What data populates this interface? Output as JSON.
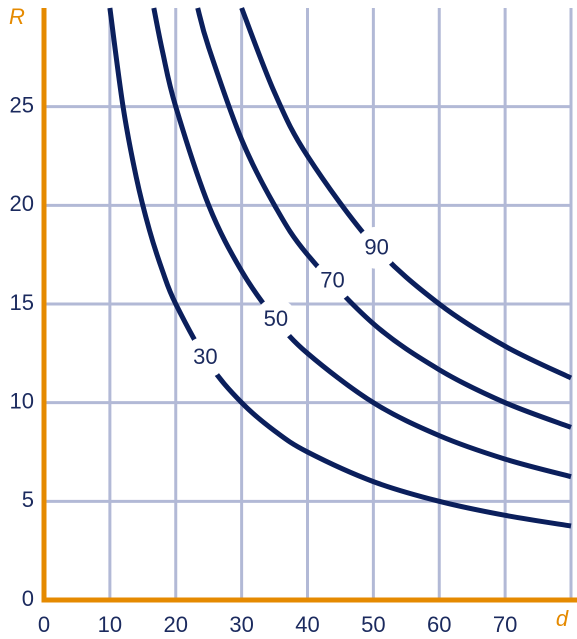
{
  "chart_data": {
    "type": "line",
    "x_label": "d",
    "y_label": "R",
    "xlim": [
      0,
      80
    ],
    "ylim": [
      0,
      30
    ],
    "xticks": [
      0,
      10,
      20,
      30,
      40,
      50,
      60,
      70
    ],
    "yticks": [
      0,
      5,
      10,
      15,
      20,
      25
    ],
    "grid": true,
    "grid_color": "#b2b9d6",
    "axis_color": "#e58a00",
    "tick_color": "#1b2a5e",
    "series": [
      {
        "name": "30",
        "color": "#0b1f5c",
        "x": [
          10,
          12,
          14,
          16,
          18,
          20,
          25,
          30,
          35,
          40,
          50,
          60,
          70,
          80
        ],
        "values": [
          30,
          25,
          21.43,
          18.75,
          16.67,
          15,
          12,
          10,
          8.57,
          7.5,
          6,
          5,
          4.29,
          3.75
        ]
      },
      {
        "name": "50",
        "color": "#0b1f5c",
        "x": [
          16.67,
          18,
          20,
          25,
          30,
          35,
          40,
          50,
          60,
          70,
          80
        ],
        "values": [
          30,
          27.78,
          25,
          20,
          16.67,
          14.29,
          12.5,
          10,
          8.33,
          7.14,
          6.25
        ]
      },
      {
        "name": "70",
        "color": "#0b1f5c",
        "x": [
          23.33,
          25,
          30,
          35,
          40,
          50,
          60,
          70,
          80
        ],
        "values": [
          30,
          28,
          23.33,
          20,
          17.5,
          14,
          11.67,
          10,
          8.75
        ]
      },
      {
        "name": "90",
        "color": "#0b1f5c",
        "x": [
          30,
          35,
          40,
          50,
          60,
          70,
          80
        ],
        "values": [
          30,
          25.71,
          22.5,
          18,
          15,
          12.86,
          11.25
        ]
      }
    ]
  }
}
